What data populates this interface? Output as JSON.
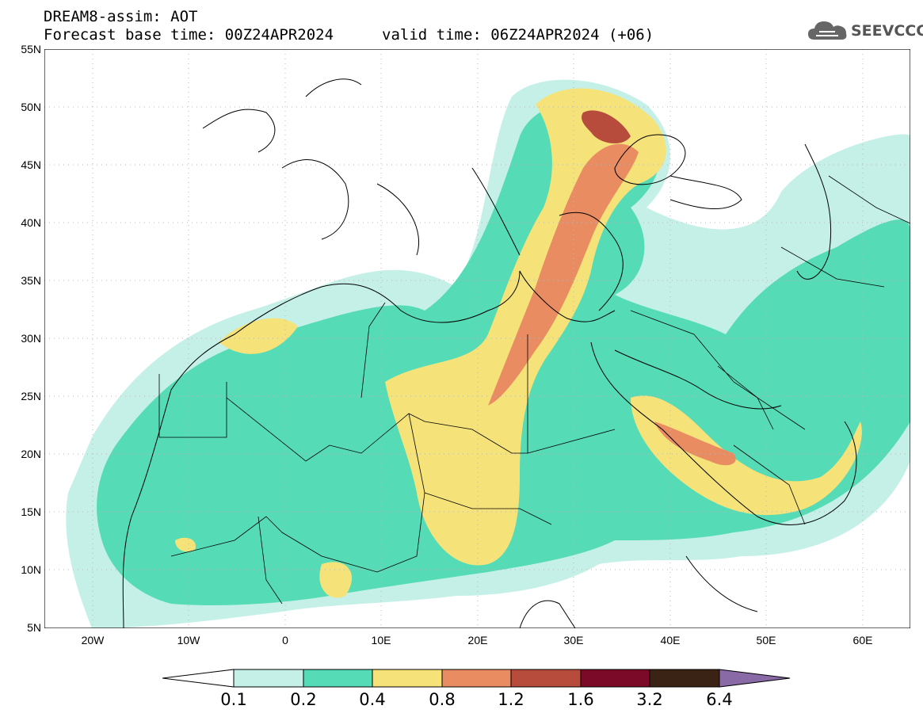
{
  "header": {
    "title_line1": "DREAM8-assim: AOT",
    "title_line2": "Forecast base time: 00Z24APR2024",
    "valid_time": "valid time: 06Z24APR2024 (+06)"
  },
  "logo": {
    "text": "SEEVCCC",
    "icon": "cloud-icon"
  },
  "map": {
    "variable": "AOT",
    "lat_range": [
      5,
      55
    ],
    "lon_range": [
      -25,
      65
    ],
    "lat_labels": [
      "55N",
      "50N",
      "45N",
      "40N",
      "35N",
      "30N",
      "25N",
      "20N",
      "15N",
      "10N",
      "5N"
    ],
    "lon_labels": [
      "20W",
      "10W",
      "0",
      "10E",
      "20E",
      "30E",
      "40E",
      "50E",
      "60E"
    ],
    "grid": true
  },
  "colorbar": {
    "colors": [
      "#ffffff",
      "#c4f0e8",
      "#55dbb5",
      "#f5e37a",
      "#ea8c61",
      "#b74c3d",
      "#7a0a28",
      "#3a2214",
      "#8a6aa6"
    ],
    "labels": [
      "0.1",
      "0.2",
      "0.4",
      "0.8",
      "1.2",
      "1.6",
      "3.2",
      "6.4"
    ]
  }
}
